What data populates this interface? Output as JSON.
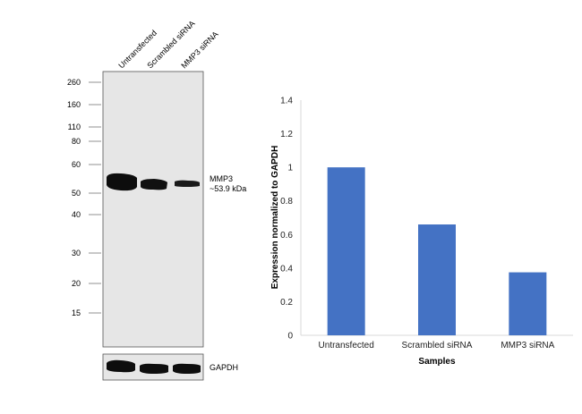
{
  "blot": {
    "lanes": [
      "Untransfected",
      "Scrambled siRNA",
      "MMP3 siRNA"
    ],
    "markers": [
      "260",
      "160",
      "110",
      "80",
      "60",
      "50",
      "40",
      "30",
      "20",
      "15"
    ],
    "band_label_line1": "MMP3",
    "band_label_line2": "~53.9 kDa",
    "loading_label": "GAPDH"
  },
  "chart_data": {
    "type": "bar",
    "categories": [
      "Untransfected",
      "Scrambled siRNA",
      "MMP3 siRNA"
    ],
    "values": [
      1.0,
      0.66,
      0.375
    ],
    "title": "",
    "xlabel": "Samples",
    "ylabel": "Expression normalized to GAPDH",
    "ylim": [
      0,
      1.4
    ],
    "yticks": [
      "0",
      "0.2",
      "0.4",
      "0.6",
      "0.8",
      "1",
      "1.2",
      "1.4"
    ],
    "grid": false,
    "legend": "none",
    "bar_color": "#4472c4"
  }
}
